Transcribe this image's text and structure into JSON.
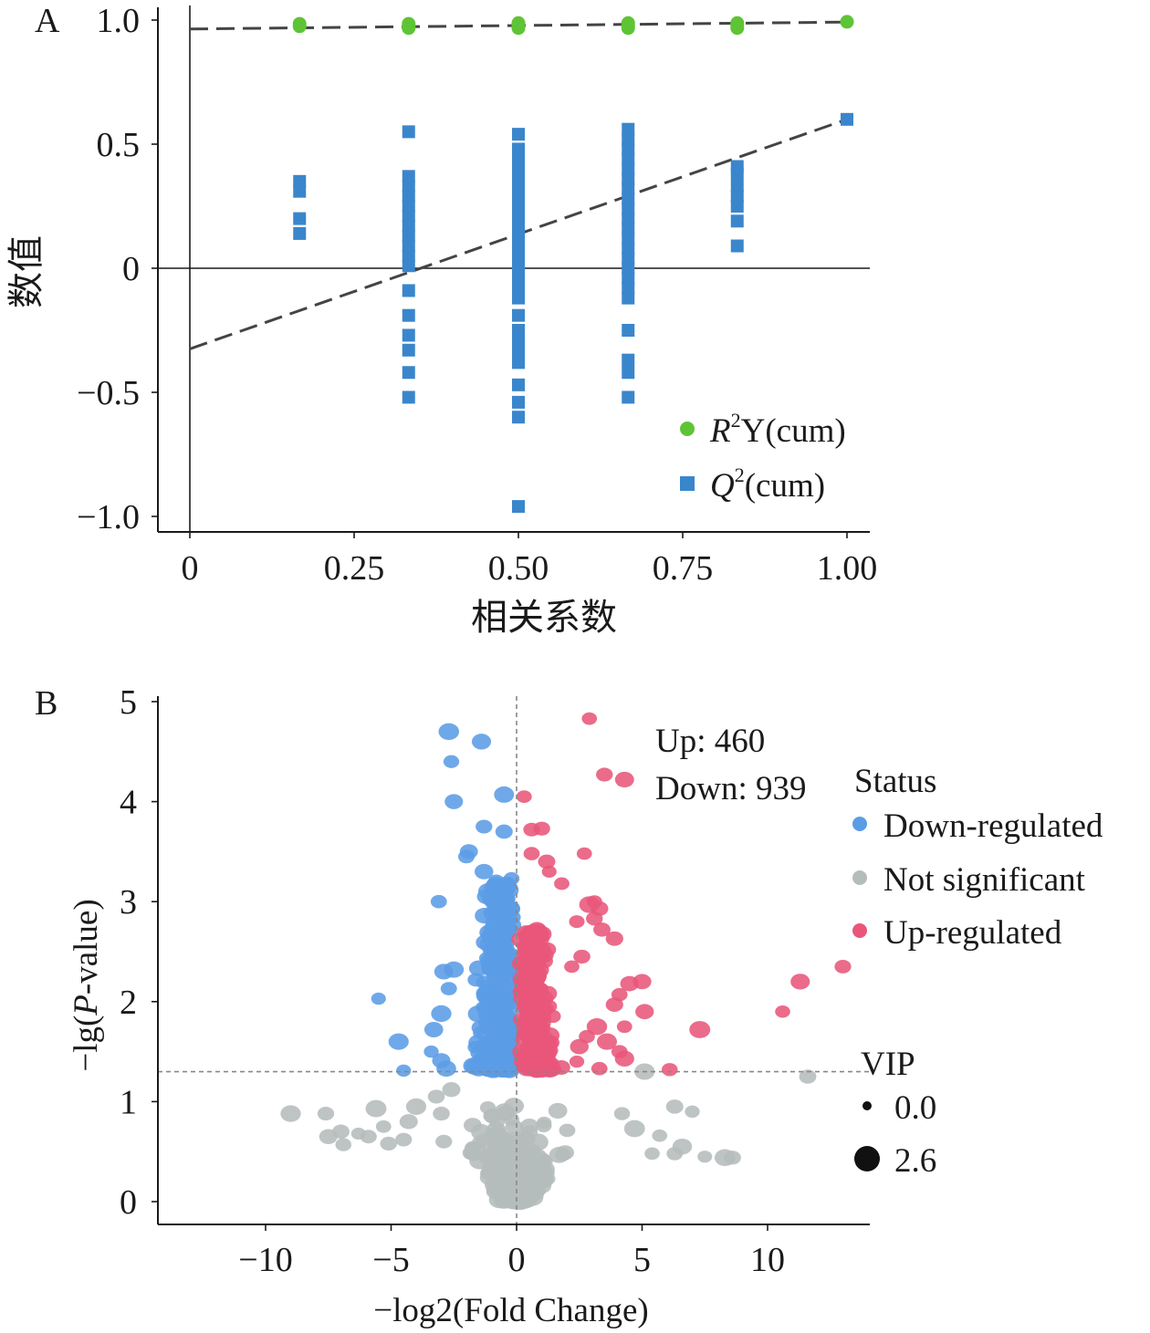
{
  "panels": {
    "a_label": "A",
    "b_label": "B"
  },
  "chart_data": [
    {
      "type": "scatter",
      "title": "",
      "xlabel": "相关系数",
      "ylabel": "数值",
      "xlim": [
        -0.05,
        1.03
      ],
      "ylim": [
        -1.06,
        1.03
      ],
      "xticks": [
        "0",
        "0.25",
        "0.50",
        "0.75",
        "1.00"
      ],
      "xtick_values": [
        0,
        0.25,
        0.5,
        0.75,
        1.0
      ],
      "yticks": [
        "1.0",
        "0.5",
        "0",
        "−0.5",
        "−1.0"
      ],
      "ytick_values": [
        1.0,
        0.5,
        0,
        -0.5,
        -1.0
      ],
      "grid": false,
      "legend_position": "bottom-right",
      "series": [
        {
          "name": "R²Y(cum)",
          "legend_parts": [
            "R",
            "2",
            "Y(cum)"
          ],
          "marker": "circle",
          "color": "#5ec435",
          "points": [
            [
              0.167,
              0.985
            ],
            [
              0.167,
              0.975
            ],
            [
              0.333,
              0.985
            ],
            [
              0.333,
              0.975
            ],
            [
              0.333,
              0.968
            ],
            [
              0.5,
              0.988
            ],
            [
              0.5,
              0.978
            ],
            [
              0.5,
              0.968
            ],
            [
              0.667,
              0.988
            ],
            [
              0.667,
              0.978
            ],
            [
              0.667,
              0.968
            ],
            [
              0.833,
              0.988
            ],
            [
              0.833,
              0.978
            ],
            [
              0.833,
              0.968
            ],
            [
              1.0,
              0.993
            ]
          ],
          "trend_line": [
            [
              0,
              0.964
            ],
            [
              1.0,
              0.992
            ]
          ]
        },
        {
          "name": "Q²(cum)",
          "legend_parts": [
            "Q",
            "2",
            "(cum)"
          ],
          "marker": "square",
          "color": "#3a86cc",
          "points": [
            [
              0.167,
              0.35
            ],
            [
              0.167,
              0.31
            ],
            [
              0.167,
              0.2
            ],
            [
              0.167,
              0.14
            ],
            [
              0.333,
              0.55
            ],
            [
              0.333,
              0.37
            ],
            [
              0.333,
              0.33
            ],
            [
              0.333,
              0.29
            ],
            [
              0.333,
              0.25
            ],
            [
              0.333,
              0.21
            ],
            [
              0.333,
              0.17
            ],
            [
              0.333,
              0.13
            ],
            [
              0.333,
              0.09
            ],
            [
              0.333,
              0.05
            ],
            [
              0.333,
              0.01
            ],
            [
              0.333,
              -0.09
            ],
            [
              0.333,
              -0.19
            ],
            [
              0.333,
              -0.27
            ],
            [
              0.333,
              -0.33
            ],
            [
              0.333,
              -0.42
            ],
            [
              0.333,
              -0.52
            ],
            [
              0.5,
              0.54
            ],
            [
              0.5,
              0.48
            ],
            [
              0.5,
              0.44
            ],
            [
              0.5,
              0.4
            ],
            [
              0.5,
              0.36
            ],
            [
              0.5,
              0.32
            ],
            [
              0.5,
              0.28
            ],
            [
              0.5,
              0.24
            ],
            [
              0.5,
              0.2
            ],
            [
              0.5,
              0.16
            ],
            [
              0.5,
              0.12
            ],
            [
              0.5,
              0.08
            ],
            [
              0.5,
              0.04
            ],
            [
              0.5,
              0.0
            ],
            [
              0.5,
              -0.04
            ],
            [
              0.5,
              -0.08
            ],
            [
              0.5,
              -0.12
            ],
            [
              0.5,
              -0.19
            ],
            [
              0.5,
              -0.25
            ],
            [
              0.5,
              -0.3
            ],
            [
              0.5,
              -0.33
            ],
            [
              0.5,
              -0.38
            ],
            [
              0.5,
              -0.47
            ],
            [
              0.5,
              -0.54
            ],
            [
              0.5,
              -0.6
            ],
            [
              0.5,
              -0.96
            ],
            [
              0.667,
              0.56
            ],
            [
              0.667,
              0.52
            ],
            [
              0.667,
              0.48
            ],
            [
              0.667,
              0.44
            ],
            [
              0.667,
              0.4
            ],
            [
              0.667,
              0.36
            ],
            [
              0.667,
              0.32
            ],
            [
              0.667,
              0.28
            ],
            [
              0.667,
              0.24
            ],
            [
              0.667,
              0.2
            ],
            [
              0.667,
              0.16
            ],
            [
              0.667,
              0.12
            ],
            [
              0.667,
              0.08
            ],
            [
              0.667,
              0.04
            ],
            [
              0.667,
              0.0
            ],
            [
              0.667,
              -0.04
            ],
            [
              0.667,
              -0.08
            ],
            [
              0.667,
              -0.12
            ],
            [
              0.667,
              -0.25
            ],
            [
              0.667,
              -0.37
            ],
            [
              0.667,
              -0.42
            ],
            [
              0.667,
              -0.52
            ],
            [
              0.833,
              0.41
            ],
            [
              0.833,
              0.38
            ],
            [
              0.833,
              0.33
            ],
            [
              0.833,
              0.29
            ],
            [
              0.833,
              0.25
            ],
            [
              0.833,
              0.19
            ],
            [
              0.833,
              0.09
            ],
            [
              1.0,
              0.6
            ]
          ],
          "trend_line": [
            [
              0,
              -0.325
            ],
            [
              1.0,
              0.6
            ]
          ]
        }
      ]
    },
    {
      "type": "scatter",
      "title": "",
      "xlabel": "−log2(Fold Change)",
      "ylabel_parts": [
        "−lg(",
        "P",
        "-value)"
      ],
      "xlim": [
        -14.3,
        14.2
      ],
      "ylim": [
        -0.25,
        5.13
      ],
      "xticks": [
        "−10",
        "−5",
        "0",
        "5",
        "10"
      ],
      "xtick_values": [
        -10,
        -5,
        0,
        5,
        10
      ],
      "yticks": [
        "5",
        "4",
        "3",
        "2",
        "1",
        "0"
      ],
      "ytick_values": [
        5,
        4,
        3,
        2,
        1,
        0
      ],
      "grid": false,
      "threshold_y": 1.3,
      "threshold_x": 0,
      "annotations": [
        "Up: 460",
        "Down: 939"
      ],
      "legend_title": "Status",
      "legend_position": "right",
      "size_legend_title": "VIP",
      "size_legend": [
        {
          "label": "0.0",
          "vip": 0.0
        },
        {
          "label": "2.6",
          "vip": 2.6
        }
      ],
      "series": [
        {
          "name": "Down-regulated",
          "color": "#5b9ce6",
          "count": 939,
          "outliers": [
            [
              -2.7,
              4.7
            ],
            [
              -1.4,
              4.6
            ],
            [
              -2.6,
              4.4
            ],
            [
              -2.5,
              4.0
            ],
            [
              -0.5,
              4.07
            ],
            [
              -1.3,
              3.75
            ],
            [
              -0.5,
              3.7
            ],
            [
              -1.9,
              3.5
            ],
            [
              -2.0,
              3.45
            ],
            [
              -0.2,
              3.23
            ],
            [
              -3.1,
              3.0
            ],
            [
              -1.3,
              3.3
            ],
            [
              -2.9,
              2.3
            ],
            [
              -2.5,
              2.32
            ],
            [
              -2.7,
              2.13
            ],
            [
              -5.5,
              2.03
            ],
            [
              -4.7,
              1.6
            ],
            [
              -4.5,
              1.31
            ],
            [
              -3.4,
              1.5
            ],
            [
              -3.0,
              1.41
            ],
            [
              -2.8,
              1.33
            ],
            [
              -3.3,
              1.72
            ],
            [
              -3.0,
              1.88
            ]
          ]
        },
        {
          "name": "Not significant",
          "color": "#b5bcbc",
          "outliers": [
            [
              -9.0,
              0.88
            ],
            [
              -7.6,
              0.88
            ],
            [
              -7.5,
              0.65
            ],
            [
              -7.0,
              0.7
            ],
            [
              -6.9,
              0.57
            ],
            [
              -6.3,
              0.68
            ],
            [
              -5.9,
              0.65
            ],
            [
              -5.6,
              0.93
            ],
            [
              -5.3,
              0.75
            ],
            [
              -5.1,
              0.58
            ],
            [
              -4.5,
              0.62
            ],
            [
              -4.0,
              0.95
            ],
            [
              -4.3,
              0.8
            ],
            [
              -3.2,
              1.05
            ],
            [
              -3.0,
              0.88
            ],
            [
              -2.6,
              1.12
            ],
            [
              -2.9,
              0.6
            ],
            [
              4.2,
              0.88
            ],
            [
              4.7,
              0.73
            ],
            [
              5.1,
              1.3
            ],
            [
              5.7,
              0.66
            ],
            [
              5.4,
              0.48
            ],
            [
              6.3,
              0.48
            ],
            [
              6.6,
              0.55
            ],
            [
              6.3,
              0.95
            ],
            [
              7.0,
              0.9
            ],
            [
              7.5,
              0.45
            ],
            [
              8.3,
              0.44
            ],
            [
              8.6,
              0.44
            ],
            [
              11.6,
              1.25
            ]
          ]
        },
        {
          "name": "Up-regulated",
          "color": "#e8577a",
          "count": 460,
          "outliers": [
            [
              2.9,
              4.83
            ],
            [
              3.5,
              4.27
            ],
            [
              4.3,
              4.22
            ],
            [
              0.3,
              4.05
            ],
            [
              1.0,
              3.73
            ],
            [
              0.6,
              3.72
            ],
            [
              2.7,
              3.48
            ],
            [
              0.6,
              3.48
            ],
            [
              1.2,
              3.4
            ],
            [
              1.3,
              3.3
            ],
            [
              1.8,
              3.18
            ],
            [
              3.1,
              3.0
            ],
            [
              3.3,
              2.93
            ],
            [
              2.9,
              2.97
            ],
            [
              3.1,
              2.83
            ],
            [
              3.4,
              2.72
            ],
            [
              3.9,
              2.63
            ],
            [
              2.4,
              2.8
            ],
            [
              2.6,
              2.45
            ],
            [
              2.2,
              2.35
            ],
            [
              4.5,
              2.18
            ],
            [
              5.0,
              2.2
            ],
            [
              4.1,
              2.07
            ],
            [
              3.9,
              1.97
            ],
            [
              5.1,
              1.9
            ],
            [
              4.3,
              1.75
            ],
            [
              3.2,
              1.75
            ],
            [
              2.8,
              1.65
            ],
            [
              2.5,
              1.55
            ],
            [
              3.6,
              1.6
            ],
            [
              4.1,
              1.5
            ],
            [
              4.3,
              1.43
            ],
            [
              3.3,
              1.33
            ],
            [
              2.4,
              1.4
            ],
            [
              6.1,
              1.32
            ],
            [
              7.3,
              1.72
            ],
            [
              10.6,
              1.9
            ],
            [
              11.3,
              2.2
            ],
            [
              13.0,
              2.35
            ]
          ]
        }
      ]
    }
  ]
}
